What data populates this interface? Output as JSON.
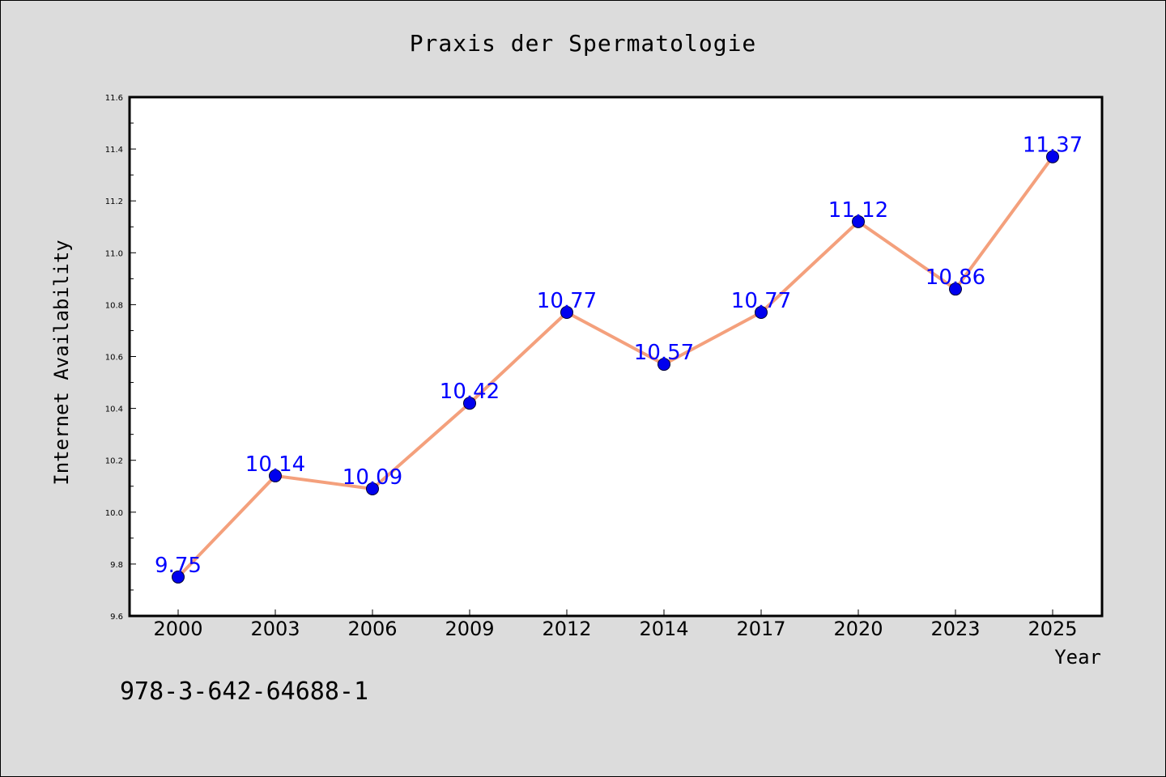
{
  "chart_data": {
    "type": "line",
    "title": "Praxis der Spermatologie",
    "xlabel": "Year",
    "ylabel": "Internet Availability",
    "categories": [
      "2000",
      "2003",
      "2006",
      "2009",
      "2012",
      "2014",
      "2017",
      "2020",
      "2023",
      "2025"
    ],
    "series": [
      {
        "values": [
          9.75,
          10.14,
          10.09,
          10.42,
          10.77,
          10.57,
          10.77,
          11.12,
          10.86,
          11.37
        ],
        "labels": [
          "9.75",
          "10.14",
          "10.09",
          "10.42",
          "10.77",
          "10.57",
          "10.77",
          "11.12",
          "10.86",
          "11.37"
        ],
        "line_color": "#f4a07c",
        "marker_color": "#0000ee",
        "label_color": "#0000ff"
      }
    ],
    "ylim": [
      9.6,
      11.6
    ],
    "yticks": [
      "9.6",
      "9.8",
      "10.0",
      "10.2",
      "10.4",
      "10.6",
      "10.8",
      "11.0",
      "11.2",
      "11.4",
      "11.6"
    ],
    "grid": false,
    "legend": "none"
  },
  "footer": {
    "text": "978-3-642-64688-1"
  },
  "colors": {
    "background": "#dcdcdc",
    "plot_background": "#ffffff"
  }
}
